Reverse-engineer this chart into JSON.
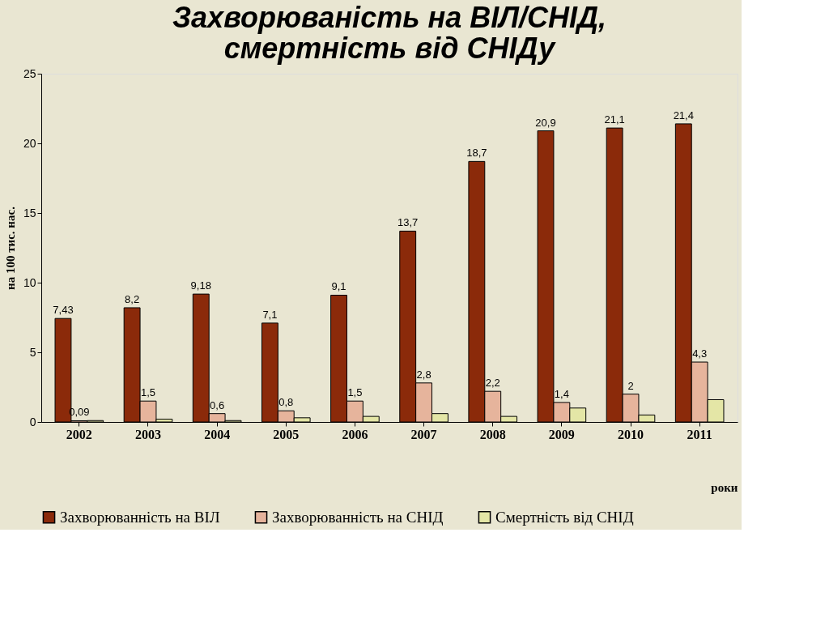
{
  "chart_data": {
    "type": "bar",
    "title": [
      "Захворюваність на ВІЛ/СНІД,",
      "смертність від СНІДу"
    ],
    "categories": [
      "2002",
      "2003",
      "2004",
      "2005",
      "2006",
      "2007",
      "2008",
      "2009",
      "2010",
      "2011"
    ],
    "series": [
      {
        "name": "Захворюванність на ВІЛ",
        "color": "#8b2a0a",
        "values": [
          7.43,
          8.2,
          9.18,
          7.1,
          9.1,
          13.7,
          18.7,
          20.9,
          21.1,
          21.4
        ],
        "value_labels": [
          "7,43",
          "8,2",
          "9,18",
          "7,1",
          "9,1",
          "13,7",
          "18,7",
          "20,9",
          "21,1",
          "21,4"
        ]
      },
      {
        "name": "Захворюванність на СНІД",
        "color": "#e6b49c",
        "values": [
          0.09,
          1.5,
          0.6,
          0.8,
          1.5,
          2.8,
          2.2,
          1.4,
          2,
          4.3
        ],
        "value_labels": [
          "0,09",
          "1,5",
          "0,6",
          "0,8",
          "1,5",
          "2,8",
          "2,2",
          "1,4",
          "2",
          "4,3"
        ]
      },
      {
        "name": "Смертність від СНІД",
        "color": "#e4e6a6",
        "values": [
          0.1,
          0.2,
          0.1,
          0.3,
          0.4,
          0.6,
          0.4,
          1.0,
          0.5,
          1.6
        ]
      }
    ],
    "ylabel": "на 100 тис. нас.",
    "xlabel": "роки",
    "ylim": [
      0,
      25
    ],
    "yticks": [
      0,
      5,
      10,
      15,
      20,
      25
    ],
    "grid": false,
    "legend": "bottom"
  }
}
